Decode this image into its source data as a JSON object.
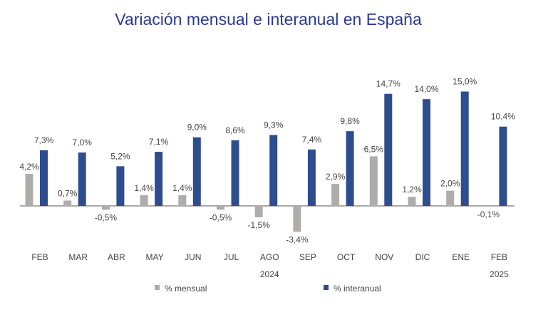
{
  "chart_data": {
    "type": "bar",
    "title": "Variación mensual e interanual en España",
    "categories": [
      "FEB",
      "MAR",
      "ABR",
      "MAY",
      "JUN",
      "JUL",
      "AGO",
      "SEP",
      "OCT",
      "NOV",
      "DIC",
      "ENE",
      "FEB"
    ],
    "year_labels": {
      "2024": "2024",
      "2025": "2025"
    },
    "series": [
      {
        "name": "% mensual",
        "color": "#b0acaa",
        "values": [
          4.2,
          0.7,
          -0.5,
          1.4,
          1.4,
          -0.5,
          -1.5,
          -3.4,
          2.9,
          6.5,
          1.2,
          2.0,
          -0.1
        ],
        "labels": [
          "4,2%",
          "0,7%",
          "-0,5%",
          "1,4%",
          "1,4%",
          "-0,5%",
          "-1,5%",
          "-3,4%",
          "2,9%",
          "6,5%",
          "1,2%",
          "2,0%",
          "-0,1%"
        ]
      },
      {
        "name": "% interanual",
        "color": "#2e4d8f",
        "values": [
          7.3,
          7.0,
          5.2,
          7.1,
          9.0,
          8.6,
          9.3,
          7.4,
          9.8,
          14.7,
          14.0,
          15.0,
          10.4
        ],
        "labels": [
          "7,3%",
          "7,0%",
          "5,2%",
          "7,1%",
          "9,0%",
          "8,6%",
          "9,3%",
          "7,4%",
          "9,8%",
          "14,7%",
          "14,0%",
          "15,0%",
          "10,4%"
        ]
      }
    ],
    "legend": "bottom",
    "grid": false
  }
}
